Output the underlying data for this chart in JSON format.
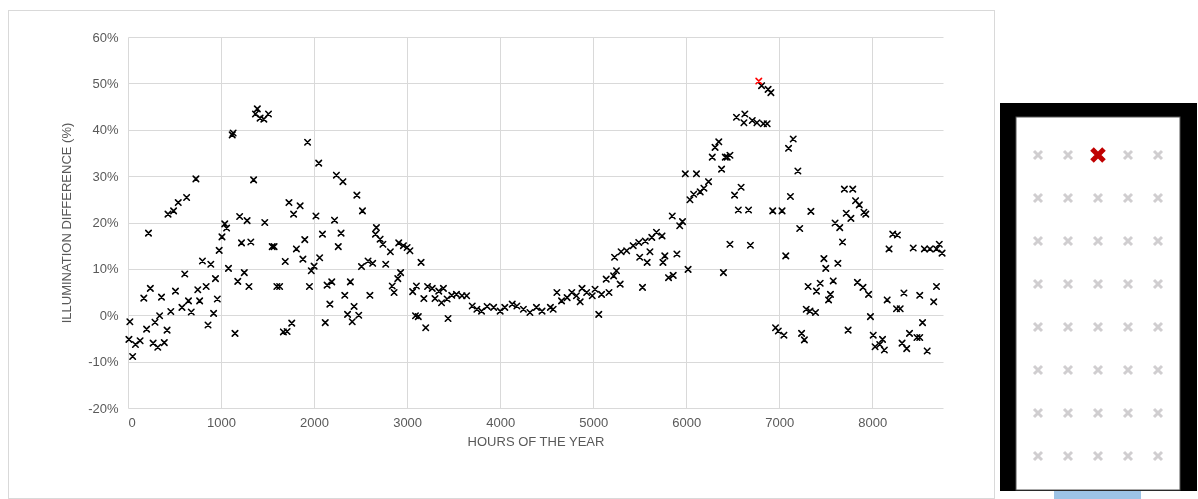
{
  "chart_data": {
    "type": "scatter",
    "xlabel": "HOURS OF THE YEAR",
    "ylabel": "ILLUMINATION DIFFERENCE (%)",
    "xlim": [
      0,
      8760
    ],
    "xticks": [
      0,
      1000,
      2000,
      3000,
      4000,
      5000,
      6000,
      7000,
      8000
    ],
    "ylim": [
      -20,
      60
    ],
    "yticks": [
      {
        "value": -20,
        "label": "-20%"
      },
      {
        "value": -10,
        "label": "-10%"
      },
      {
        "value": 0,
        "label": "0%"
      },
      {
        "value": 10,
        "label": "10%"
      },
      {
        "value": 20,
        "label": "20%"
      },
      {
        "value": 30,
        "label": "30%"
      },
      {
        "value": 40,
        "label": "40%"
      },
      {
        "value": 50,
        "label": "50%"
      },
      {
        "value": 60,
        "label": "60%"
      }
    ],
    "grid": true,
    "marker": "cross",
    "series": [
      {
        "color": "#000000",
        "x": [
          20,
          10,
          50,
          80,
          130,
          200,
          170,
          240,
          220,
          270,
          320,
          290,
          340,
          360,
          390,
          420,
          460,
          510,
          430,
          490,
          540,
          630,
          580,
          610,
          650,
          680,
          730,
          750,
          770,
          800,
          890,
          840,
          860,
          920,
          940,
          960,
          980,
          1010,
          1040,
          1060,
          1080,
          1120,
          1130,
          1150,
          1180,
          1200,
          1220,
          1250,
          1280,
          1300,
          1320,
          1350,
          1370,
          1390,
          1420,
          1460,
          1510,
          1470,
          1550,
          1570,
          1600,
          1630,
          1670,
          1710,
          1760,
          1690,
          1730,
          1780,
          1810,
          1850,
          1880,
          1900,
          1930,
          1950,
          1970,
          2000,
          2020,
          2050,
          2060,
          2090,
          2120,
          2140,
          2190,
          2170,
          2220,
          2240,
          2290,
          2260,
          2310,
          2330,
          2360,
          2390,
          2410,
          2430,
          2480,
          2460,
          2520,
          2510,
          2580,
          2600,
          2630,
          2660,
          2670,
          2710,
          2740,
          2770,
          2820,
          2840,
          2860,
          2900,
          2930,
          2910,
          2960,
          3000,
          3030,
          3060,
          3100,
          3090,
          3120,
          3150,
          3180,
          3200,
          3220,
          3270,
          3300,
          3340,
          3370,
          3390,
          3440,
          3430,
          3480,
          3530,
          3590,
          3640,
          3700,
          3750,
          3800,
          3860,
          3930,
          4000,
          4050,
          4130,
          4180,
          4250,
          4320,
          4390,
          4450,
          4540,
          4610,
          4570,
          4660,
          4720,
          4770,
          4820,
          4860,
          4880,
          4930,
          4990,
          5020,
          5060,
          5090,
          5140,
          5170,
          5220,
          5250,
          5290,
          5230,
          5300,
          5360,
          5430,
          5490,
          5500,
          5530,
          5580,
          5610,
          5560,
          5630,
          5680,
          5740,
          5750,
          5770,
          5810,
          5860,
          5850,
          5900,
          5930,
          5960,
          5990,
          6020,
          6040,
          6080,
          6110,
          6150,
          6190,
          6240,
          6280,
          6310,
          6350,
          6380,
          6420,
          6400,
          6470,
          6440,
          6470,
          6520,
          6590,
          6560,
          6670,
          6690,
          6540,
          6630,
          6620,
          6710,
          6760,
          6830,
          6870,
          6810,
          6880,
          6910,
          6930,
          7030,
          6960,
          6990,
          7050,
          7070,
          7100,
          7150,
          7200,
          7120,
          7220,
          7240,
          7270,
          7340,
          7290,
          7330,
          7390,
          7310,
          7400,
          7440,
          7480,
          7500,
          7530,
          7550,
          7580,
          7630,
          7600,
          7650,
          7680,
          7700,
          7720,
          7740,
          7770,
          7790,
          7820,
          7860,
          7910,
          7930,
          7840,
          7900,
          7960,
          7980,
          8010,
          8030,
          8080,
          8110,
          8130,
          8160,
          8180,
          8220,
          8270,
          8260,
          8300,
          8340,
          8320,
          8370,
          8400,
          8440,
          8480,
          8510,
          8510,
          8540,
          8560,
          8590,
          8620,
          8660,
          8690,
          8690,
          8720,
          8750
        ],
        "values": [
          -1.4,
          -5.2,
          -8.9,
          -6.3,
          -5.5,
          -3.0,
          3.7,
          5.8,
          17.7,
          -6.0,
          -6.9,
          -1.5,
          -0.1,
          3.9,
          -5.9,
          -3.2,
          0.8,
          5.2,
          21.8,
          22.5,
          24.3,
          25.4,
          1.7,
          8.9,
          3.1,
          0.7,
          29.4,
          5.5,
          3.1,
          11.7,
          11.0,
          6.2,
          -2.1,
          0.4,
          7.9,
          3.5,
          14.0,
          16.9,
          19.7,
          18.8,
          10.1,
          38.9,
          39.3,
          -3.9,
          7.3,
          21.3,
          15.6,
          9.2,
          20.4,
          6.2,
          15.8,
          29.2,
          43.4,
          44.5,
          42.5,
          42.3,
          43.4,
          20.0,
          14.8,
          14.8,
          6.2,
          6.2,
          -3.6,
          -3.5,
          -1.7,
          11.6,
          24.3,
          21.8,
          14.3,
          23.6,
          12.1,
          16.3,
          37.3,
          6.2,
          9.6,
          10.6,
          21.4,
          32.8,
          12.4,
          17.5,
          -1.6,
          6.5,
          7.2,
          2.4,
          20.5,
          30.2,
          17.7,
          14.8,
          28.8,
          4.3,
          0.2,
          7.2,
          -1.4,
          1.9,
          0.0,
          25.9,
          22.5,
          10.5,
          11.7,
          4.3,
          11.2,
          17.5,
          18.9,
          16.4,
          15.3,
          11.0,
          13.7,
          6.3,
          4.9,
          7.9,
          9.2,
          15.6,
          15.0,
          14.6,
          13.9,
          5.1,
          6.3,
          -0.1,
          -0.3,
          11.4,
          3.6,
          -2.7,
          6.2,
          5.8,
          3.6,
          5.2,
          2.7,
          5.8,
          -0.7,
          3.5,
          4.3,
          4.5,
          4.2,
          4.2,
          2.0,
          1.3,
          0.9,
          1.9,
          1.7,
          0.9,
          1.7,
          2.4,
          2.0,
          1.3,
          0.6,
          1.7,
          0.9,
          1.7,
          4.9,
          1.3,
          3.1,
          3.8,
          4.9,
          4.2,
          2.9,
          5.8,
          4.9,
          4.2,
          5.6,
          0.2,
          4.5,
          7.8,
          4.9,
          8.5,
          9.6,
          6.7,
          12.5,
          13.7,
          13.9,
          15.0,
          15.7,
          12.5,
          6.0,
          11.4,
          13.7,
          16.0,
          16.8,
          17.9,
          17.1,
          11.4,
          12.8,
          8.1,
          8.6,
          21.4,
          13.2,
          19.3,
          20.2,
          30.5,
          9.9,
          24.9,
          26.1,
          30.5,
          26.6,
          27.4,
          28.8,
          34.1,
          36.2,
          37.4,
          31.5,
          34.1,
          9.2,
          15.3,
          34.1,
          34.5,
          25.9,
          27.6,
          22.7,
          22.7,
          15.1,
          42.7,
          43.4,
          41.5,
          42.0,
          41.5,
          41.3,
          41.3,
          49.5,
          48.7,
          48.0,
          22.5,
          22.5,
          -2.7,
          -3.4,
          -4.3,
          12.8,
          36.0,
          38.0,
          31.1,
          25.6,
          18.7,
          -3.9,
          -5.3,
          22.4,
          1.3,
          0.9,
          0.6,
          6.2,
          5.2,
          6.9,
          12.2,
          10.1,
          3.3,
          4.5,
          7.4,
          11.2,
          19.9,
          18.9,
          15.8,
          27.2,
          22.0,
          -3.2,
          20.9,
          27.2,
          24.7,
          23.8,
          22.2,
          21.8,
          7.1,
          6.0,
          4.5,
          -0.3,
          -4.3,
          -6.8,
          -6.3,
          -5.2,
          -7.5,
          3.3,
          14.3,
          17.5,
          17.3,
          1.4,
          1.4,
          4.8,
          -6.0,
          -7.2,
          -3.9,
          14.5,
          -4.8,
          -4.8,
          4.3,
          -1.6,
          14.3,
          -7.7,
          14.3,
          2.9,
          6.2,
          14.3,
          15.3,
          13.4
        ]
      },
      {
        "color": "#ff0000",
        "x": [
          6780
        ],
        "values": [
          50.5
        ]
      }
    ]
  }
}
